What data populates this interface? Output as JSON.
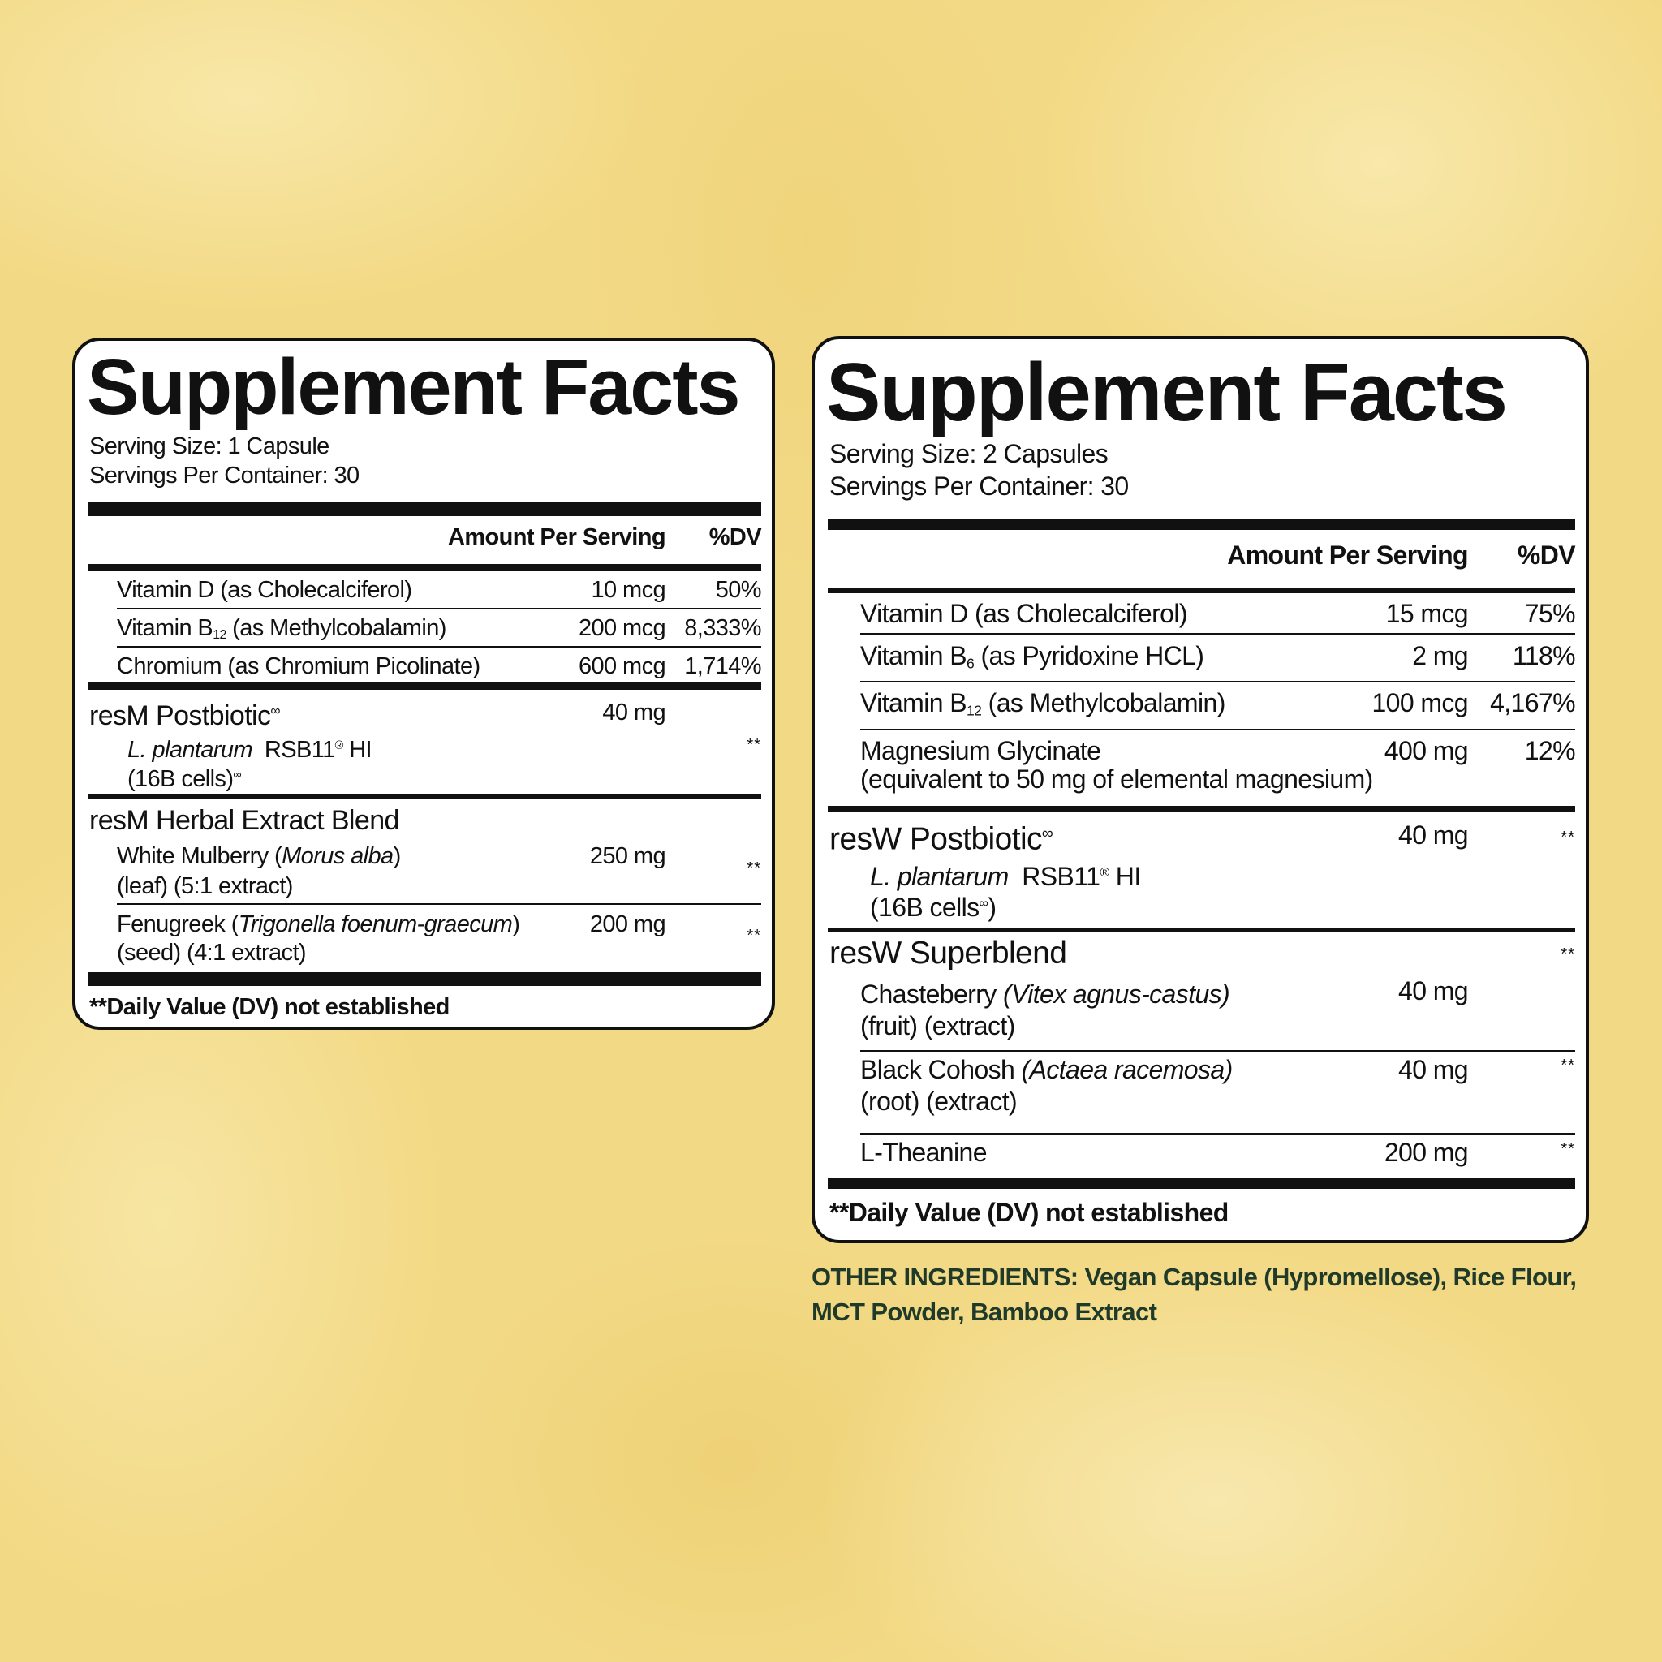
{
  "colors": {
    "background": "#f2d985",
    "panel": "#ffffff",
    "text": "#111111",
    "other_ingredients": "#1f3a28"
  },
  "left": {
    "title": "Supplement Facts",
    "serving_size": "Serving Size: 1 Capsule",
    "servings_per_container": "Servings Per Container: 30",
    "header_amount": "Amount Per Serving",
    "header_dv": "%DV",
    "rows": [
      {
        "name": "Vitamin D (as Cholecalciferol)",
        "amount": "10 mcg",
        "dv": "50%"
      },
      {
        "name_pre": "Vitamin B",
        "sub": "12",
        "name_post": " (as Methylcobalamin)",
        "amount": "200 mcg",
        "dv": "8,333%"
      },
      {
        "name": "Chromium (as Chromium Picolinate)",
        "amount": "600 mcg",
        "dv": "1,714%"
      }
    ],
    "postbiotic": {
      "name": "resM Postbiotic",
      "mark": "∞",
      "amount": "40 mg",
      "strain_italic": "L. plantarum",
      "strain": "RSB11",
      "reg": "®",
      "strain_post": " HI",
      "cells": "(16B cells)",
      "cells_mark": "∞",
      "dv": "**"
    },
    "blend": {
      "name": "resM Herbal Extract Blend",
      "items": [
        {
          "pre": "White Mulberry (",
          "latin": "Morus alba",
          "post": ")",
          "line2": "(leaf) (5:1 extract)",
          "amount": "250 mg",
          "dv": "**"
        },
        {
          "pre": "Fenugreek (",
          "latin": "Trigonella foenum-graecum",
          "post": ")",
          "line2": "(seed) (4:1 extract)",
          "amount": "200 mg",
          "dv": "**"
        }
      ]
    },
    "footnote": "**Daily Value (DV) not established"
  },
  "right": {
    "title": "Supplement Facts",
    "serving_size": "Serving Size: 2 Capsules",
    "servings_per_container": "Servings Per Container: 30",
    "header_amount": "Amount Per Serving",
    "header_dv": "%DV",
    "rows": [
      {
        "name": "Vitamin D (as Cholecalciferol)",
        "amount": "15 mcg",
        "dv": "75%"
      },
      {
        "name_pre": "Vitamin B",
        "sub": "6",
        "name_post": " (as Pyridoxine HCL)",
        "amount": "2 mg",
        "dv": "118%"
      },
      {
        "name_pre": "Vitamin B",
        "sub": "12",
        "name_post": " (as Methylcobalamin)",
        "amount": "100 mcg",
        "dv": "4,167%"
      },
      {
        "name": "Magnesium Glycinate",
        "line2": "(equivalent to 50 mg of elemental magnesium)",
        "amount": "400 mg",
        "dv": "12%"
      }
    ],
    "postbiotic": {
      "name": "resW Postbiotic",
      "mark": "∞",
      "amount": "40 mg",
      "dv": "**",
      "strain_italic": "L. plantarum",
      "strain": "RSB11",
      "reg": "®",
      "strain_post": " HI",
      "cells": "(16B cells",
      "cells_mark": "∞",
      "cells_post": ")"
    },
    "blend": {
      "name": "resW Superblend",
      "dv": "**",
      "items": [
        {
          "pre": "Chasteberry ",
          "latin": "(Vitex agnus-castus)",
          "line2": "(fruit) (extract)",
          "amount": "40 mg"
        },
        {
          "pre": "Black Cohosh ",
          "latin": "(Actaea racemosa)",
          "line2": "(root) (extract)",
          "amount": "40 mg",
          "dv": "**"
        },
        {
          "pre": "L-Theanine",
          "amount": "200 mg",
          "dv": "**"
        }
      ]
    },
    "footnote": "**Daily Value (DV) not established"
  },
  "other_ingredients": {
    "label": "OTHER INGREDIENTS:",
    "text": " Vegan Capsule (Hypromellose), Rice Flour, MCT Powder, Bamboo Extract"
  }
}
